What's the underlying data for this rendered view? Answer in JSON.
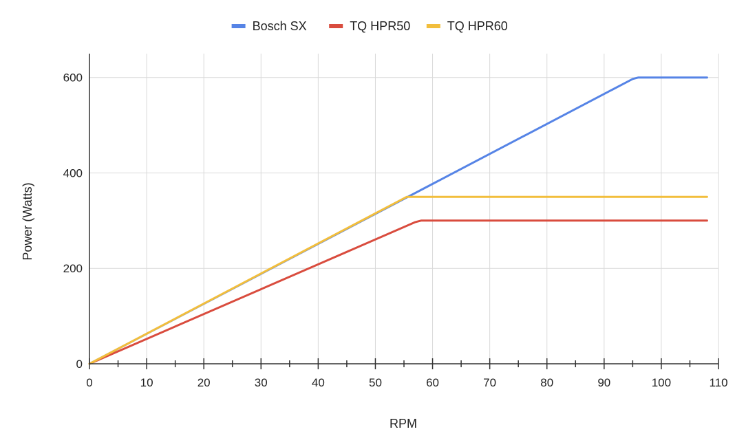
{
  "chart_data": {
    "type": "line",
    "title": "",
    "xlabel": "RPM",
    "ylabel": "Power (Watts)",
    "xlim": [
      0,
      110
    ],
    "ylim": [
      0,
      650
    ],
    "x_ticks": [
      0,
      10,
      20,
      30,
      40,
      50,
      60,
      70,
      80,
      90,
      100,
      110
    ],
    "x_minor_ticks": [
      5,
      15,
      25,
      35,
      45,
      55,
      65,
      75,
      85,
      95,
      105
    ],
    "y_ticks": [
      0,
      200,
      400,
      600
    ],
    "grid": true,
    "legend": "top-center",
    "series": [
      {
        "name": "Bosch SX",
        "color": "#5684e6",
        "points": [
          [
            0,
            0
          ],
          [
            95,
            597
          ],
          [
            96,
            600
          ],
          [
            108,
            600
          ]
        ]
      },
      {
        "name": "TQ HPR50",
        "color": "#d94c3e",
        "points": [
          [
            0,
            0
          ],
          [
            57,
            297
          ],
          [
            58,
            300
          ],
          [
            108,
            300
          ]
        ]
      },
      {
        "name": "TQ HPR60",
        "color": "#f2be3c",
        "points": [
          [
            0,
            0
          ],
          [
            55.5,
            350
          ],
          [
            108,
            350
          ]
        ]
      }
    ]
  }
}
